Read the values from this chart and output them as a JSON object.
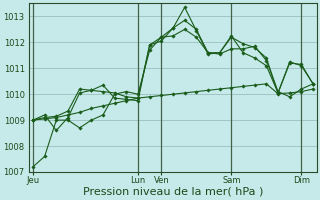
{
  "background_color": "#c6eaea",
  "grid_color_major": "#9bbfbf",
  "grid_color_minor": "#b8d8d8",
  "line_color": "#1a5c1a",
  "marker_color": "#1a5c1a",
  "xlabel": "Pression niveau de la mer( hPa )",
  "ylim": [
    1007,
    1013.5
  ],
  "yticks": [
    1007,
    1008,
    1009,
    1010,
    1011,
    1012,
    1013
  ],
  "ylabel_fontsize": 6,
  "xlabel_fontsize": 8,
  "xtick_labels": [
    "Jeu",
    "Lun",
    "Ven",
    "Sam",
    "Dim"
  ],
  "xtick_positions": [
    0,
    9,
    11,
    17,
    23
  ],
  "vline_positions": [
    0,
    9,
    11,
    17,
    23
  ],
  "series": [
    [
      1007.2,
      1007.6,
      1009.0,
      1009.0,
      1008.7,
      1009.0,
      1009.2,
      1010.0,
      1010.1,
      1010.0,
      1011.7,
      1012.2,
      1012.55,
      1012.85,
      1012.5,
      1011.6,
      1011.55,
      1011.75,
      1011.75,
      1011.85,
      1011.3,
      1010.1,
      1009.9,
      1010.2,
      1010.4
    ],
    [
      1009.0,
      1009.05,
      1009.1,
      1009.2,
      1009.3,
      1009.45,
      1009.55,
      1009.65,
      1009.75,
      1009.85,
      1009.9,
      1009.95,
      1010.0,
      1010.05,
      1010.1,
      1010.15,
      1010.2,
      1010.25,
      1010.3,
      1010.35,
      1010.4,
      1010.02,
      1010.05,
      1010.1,
      1010.2
    ],
    [
      1009.0,
      1009.2,
      1008.6,
      1009.1,
      1010.05,
      1010.15,
      1010.35,
      1009.85,
      1009.8,
      1009.75,
      1011.9,
      1012.05,
      1012.55,
      1013.35,
      1012.45,
      1011.55,
      1011.6,
      1012.25,
      1011.6,
      1011.4,
      1011.1,
      1010.05,
      1011.25,
      1011.1,
      1010.4
    ],
    [
      1009.0,
      1009.1,
      1009.15,
      1009.35,
      1010.2,
      1010.15,
      1010.1,
      1010.05,
      1009.9,
      1009.85,
      1011.9,
      1012.2,
      1012.25,
      1012.5,
      1012.2,
      1011.6,
      1011.6,
      1012.2,
      1011.95,
      1011.8,
      1011.4,
      1010.05,
      1011.2,
      1011.15,
      1010.4
    ]
  ]
}
